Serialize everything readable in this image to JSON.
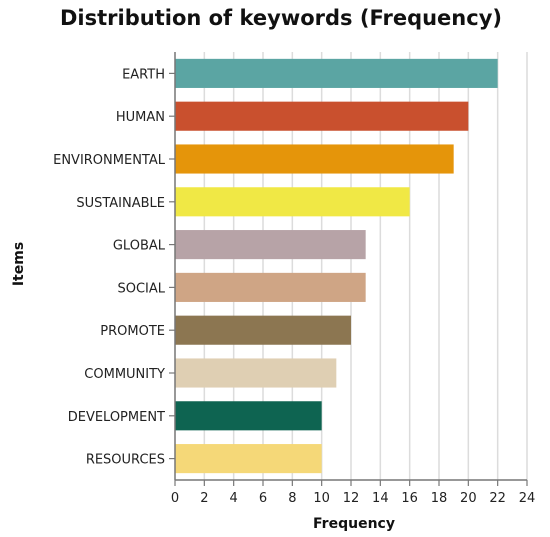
{
  "chart_data": {
    "type": "bar",
    "orientation": "horizontal",
    "title": "Distribution of keywords (Frequency)",
    "xlabel": "Frequency",
    "ylabel": "Items",
    "xlim": [
      0,
      24
    ],
    "xticks": [
      0,
      2,
      4,
      6,
      8,
      10,
      12,
      14,
      16,
      18,
      20,
      22,
      24
    ],
    "grid": true,
    "categories": [
      "EARTH",
      "HUMAN",
      "ENVIRONMENTAL",
      "SUSTAINABLE",
      "GLOBAL",
      "SOCIAL",
      "PROMOTE",
      "COMMUNITY",
      "DEVELOPMENT",
      "RESOURCES"
    ],
    "values": [
      22,
      20,
      19,
      16,
      13,
      13,
      12,
      11,
      10,
      10
    ],
    "colors": [
      "#5ba5a3",
      "#c9502e",
      "#e5950a",
      "#f0e845",
      "#b7a3a7",
      "#cfa585",
      "#8c7651",
      "#dfcfb3",
      "#0e6451",
      "#f5d878"
    ]
  }
}
